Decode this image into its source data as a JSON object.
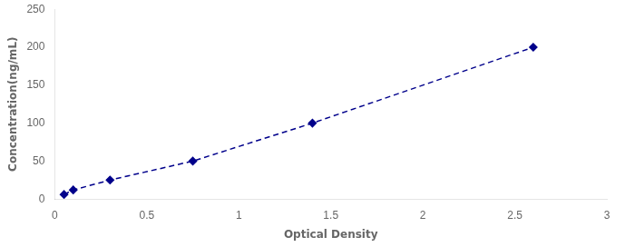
{
  "chart_data": {
    "type": "line",
    "x": [
      0.05,
      0.1,
      0.3,
      0.75,
      1.4,
      2.6
    ],
    "values": [
      6,
      12,
      25,
      50,
      100,
      200
    ],
    "color": "#00008B",
    "marker": "diamond",
    "line_style": "dashed",
    "xlabel": "Optical Density",
    "ylabel": "Concentration(ng/mL)",
    "xlim": [
      0,
      3
    ],
    "ylim": [
      0,
      250
    ],
    "xticks": [
      0,
      0.5,
      1,
      1.5,
      2,
      2.5,
      3
    ],
    "yticks": [
      0,
      50,
      100,
      150,
      200,
      250
    ],
    "grid": false
  }
}
